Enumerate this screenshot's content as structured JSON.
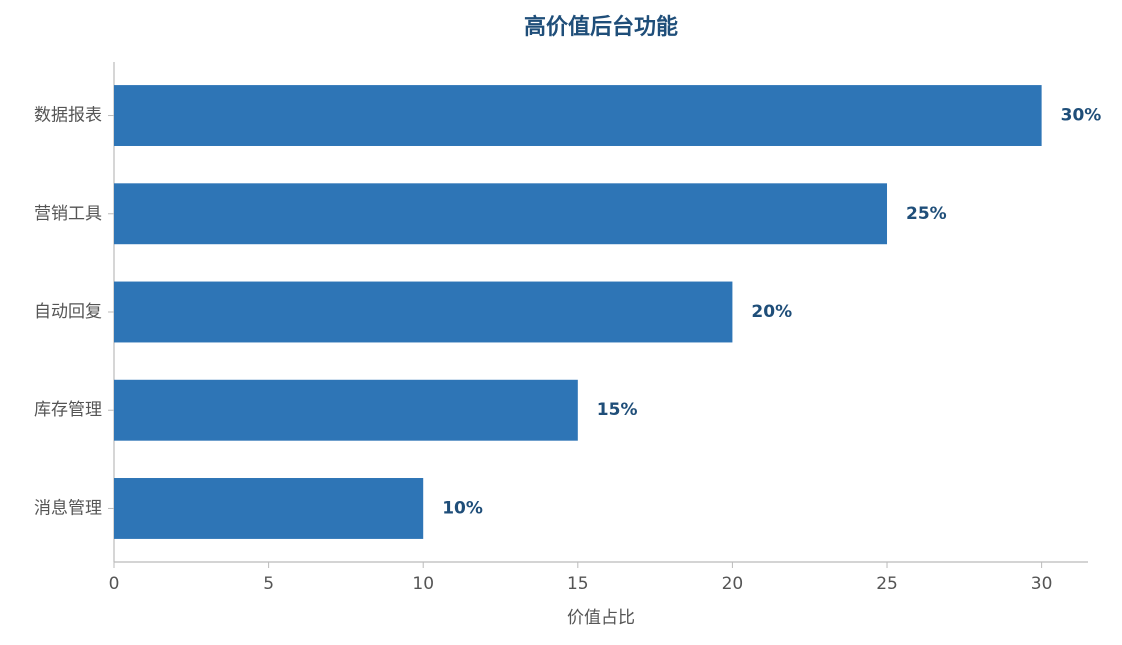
{
  "chart_data": {
    "type": "bar",
    "orientation": "horizontal",
    "title": "高价值后台功能",
    "xlabel": "价值占比",
    "categories": [
      "数据报表",
      "营销工具",
      "自动回复",
      "库存管理",
      "消息管理"
    ],
    "values": [
      30,
      25,
      20,
      15,
      10
    ],
    "value_labels": [
      "30%",
      "25%",
      "20%",
      "15%",
      "10%"
    ],
    "color": "#2e75b6",
    "xlim": [
      0,
      31.5
    ],
    "xticks": [
      0,
      5,
      10,
      15,
      20,
      25,
      30
    ],
    "grid": false
  }
}
